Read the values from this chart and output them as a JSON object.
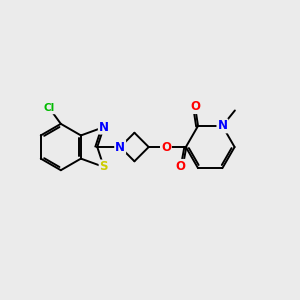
{
  "background_color": "#ebebeb",
  "bond_color": "#000000",
  "atom_colors": {
    "N": "#0000ff",
    "O": "#ff0000",
    "S": "#cccc00",
    "Cl": "#00bb00",
    "C": "#000000"
  },
  "font_size_atom": 8.5,
  "font_size_small": 7.5,
  "figsize": [
    3.0,
    3.0
  ],
  "dpi": 100
}
